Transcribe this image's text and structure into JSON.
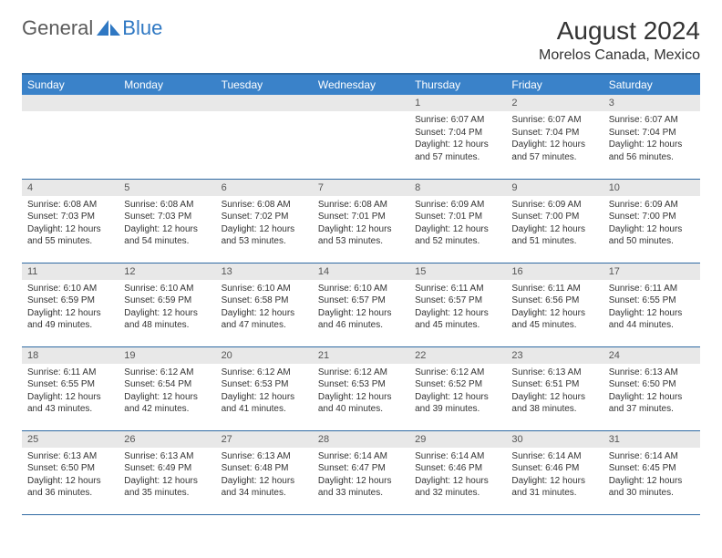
{
  "logo": {
    "general": "General",
    "blue": "Blue"
  },
  "title": "August 2024",
  "location": "Morelos Canada, Mexico",
  "colors": {
    "header_bg": "#3a82c9",
    "header_border": "#2f6aa3",
    "daynum_bg": "#e8e8e8",
    "logo_blue": "#2f78c3",
    "logo_gray": "#5a5a5a",
    "text": "#333333"
  },
  "weekdays": [
    "Sunday",
    "Monday",
    "Tuesday",
    "Wednesday",
    "Thursday",
    "Friday",
    "Saturday"
  ],
  "weeks": [
    [
      null,
      null,
      null,
      null,
      {
        "d": "1",
        "sr": "6:07 AM",
        "ss": "7:04 PM",
        "dl": "12 hours and 57 minutes."
      },
      {
        "d": "2",
        "sr": "6:07 AM",
        "ss": "7:04 PM",
        "dl": "12 hours and 57 minutes."
      },
      {
        "d": "3",
        "sr": "6:07 AM",
        "ss": "7:04 PM",
        "dl": "12 hours and 56 minutes."
      }
    ],
    [
      {
        "d": "4",
        "sr": "6:08 AM",
        "ss": "7:03 PM",
        "dl": "12 hours and 55 minutes."
      },
      {
        "d": "5",
        "sr": "6:08 AM",
        "ss": "7:03 PM",
        "dl": "12 hours and 54 minutes."
      },
      {
        "d": "6",
        "sr": "6:08 AM",
        "ss": "7:02 PM",
        "dl": "12 hours and 53 minutes."
      },
      {
        "d": "7",
        "sr": "6:08 AM",
        "ss": "7:01 PM",
        "dl": "12 hours and 53 minutes."
      },
      {
        "d": "8",
        "sr": "6:09 AM",
        "ss": "7:01 PM",
        "dl": "12 hours and 52 minutes."
      },
      {
        "d": "9",
        "sr": "6:09 AM",
        "ss": "7:00 PM",
        "dl": "12 hours and 51 minutes."
      },
      {
        "d": "10",
        "sr": "6:09 AM",
        "ss": "7:00 PM",
        "dl": "12 hours and 50 minutes."
      }
    ],
    [
      {
        "d": "11",
        "sr": "6:10 AM",
        "ss": "6:59 PM",
        "dl": "12 hours and 49 minutes."
      },
      {
        "d": "12",
        "sr": "6:10 AM",
        "ss": "6:59 PM",
        "dl": "12 hours and 48 minutes."
      },
      {
        "d": "13",
        "sr": "6:10 AM",
        "ss": "6:58 PM",
        "dl": "12 hours and 47 minutes."
      },
      {
        "d": "14",
        "sr": "6:10 AM",
        "ss": "6:57 PM",
        "dl": "12 hours and 46 minutes."
      },
      {
        "d": "15",
        "sr": "6:11 AM",
        "ss": "6:57 PM",
        "dl": "12 hours and 45 minutes."
      },
      {
        "d": "16",
        "sr": "6:11 AM",
        "ss": "6:56 PM",
        "dl": "12 hours and 45 minutes."
      },
      {
        "d": "17",
        "sr": "6:11 AM",
        "ss": "6:55 PM",
        "dl": "12 hours and 44 minutes."
      }
    ],
    [
      {
        "d": "18",
        "sr": "6:11 AM",
        "ss": "6:55 PM",
        "dl": "12 hours and 43 minutes."
      },
      {
        "d": "19",
        "sr": "6:12 AM",
        "ss": "6:54 PM",
        "dl": "12 hours and 42 minutes."
      },
      {
        "d": "20",
        "sr": "6:12 AM",
        "ss": "6:53 PM",
        "dl": "12 hours and 41 minutes."
      },
      {
        "d": "21",
        "sr": "6:12 AM",
        "ss": "6:53 PM",
        "dl": "12 hours and 40 minutes."
      },
      {
        "d": "22",
        "sr": "6:12 AM",
        "ss": "6:52 PM",
        "dl": "12 hours and 39 minutes."
      },
      {
        "d": "23",
        "sr": "6:13 AM",
        "ss": "6:51 PM",
        "dl": "12 hours and 38 minutes."
      },
      {
        "d": "24",
        "sr": "6:13 AM",
        "ss": "6:50 PM",
        "dl": "12 hours and 37 minutes."
      }
    ],
    [
      {
        "d": "25",
        "sr": "6:13 AM",
        "ss": "6:50 PM",
        "dl": "12 hours and 36 minutes."
      },
      {
        "d": "26",
        "sr": "6:13 AM",
        "ss": "6:49 PM",
        "dl": "12 hours and 35 minutes."
      },
      {
        "d": "27",
        "sr": "6:13 AM",
        "ss": "6:48 PM",
        "dl": "12 hours and 34 minutes."
      },
      {
        "d": "28",
        "sr": "6:14 AM",
        "ss": "6:47 PM",
        "dl": "12 hours and 33 minutes."
      },
      {
        "d": "29",
        "sr": "6:14 AM",
        "ss": "6:46 PM",
        "dl": "12 hours and 32 minutes."
      },
      {
        "d": "30",
        "sr": "6:14 AM",
        "ss": "6:46 PM",
        "dl": "12 hours and 31 minutes."
      },
      {
        "d": "31",
        "sr": "6:14 AM",
        "ss": "6:45 PM",
        "dl": "12 hours and 30 minutes."
      }
    ]
  ],
  "labels": {
    "sunrise": "Sunrise: ",
    "sunset": "Sunset: ",
    "daylight": "Daylight: "
  }
}
